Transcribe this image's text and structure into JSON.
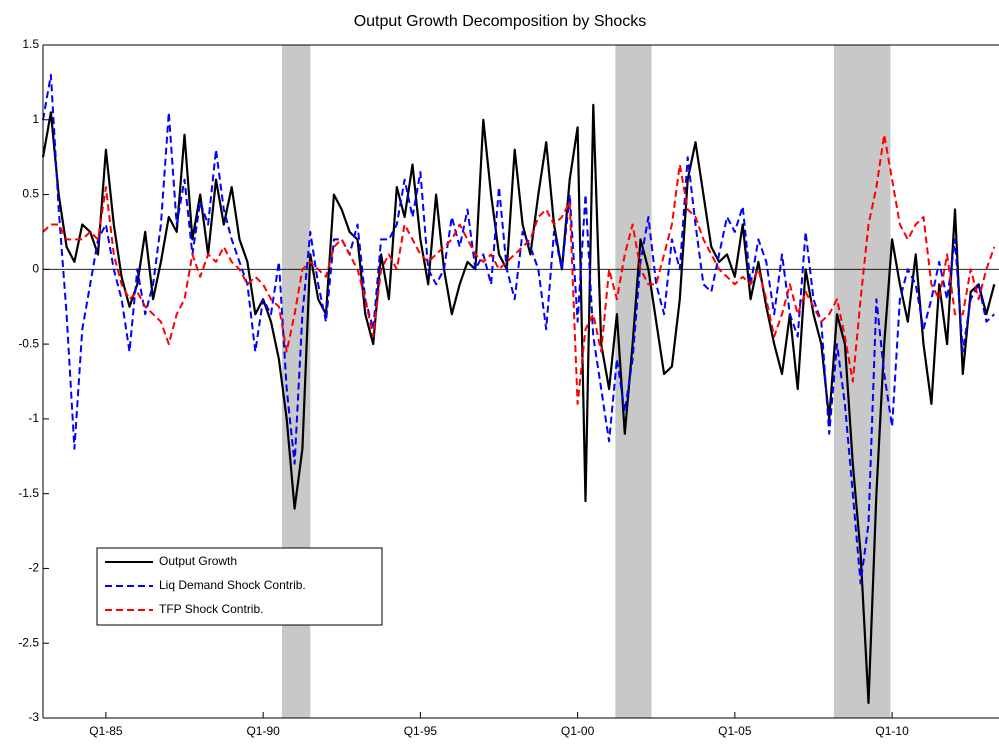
{
  "chart_data": {
    "type": "line",
    "title": "Output Growth Decomposition by Shocks",
    "x": [
      1983,
      1983.25,
      1983.5,
      1983.75,
      1984,
      1984.25,
      1984.5,
      1984.75,
      1985,
      1985.25,
      1985.5,
      1985.75,
      1986,
      1986.25,
      1986.5,
      1986.75,
      1987,
      1987.25,
      1987.5,
      1987.75,
      1988,
      1988.25,
      1988.5,
      1988.75,
      1989,
      1989.25,
      1989.5,
      1989.75,
      1990,
      1990.25,
      1990.5,
      1990.75,
      1991,
      1991.25,
      1991.5,
      1991.75,
      1992,
      1992.25,
      1992.5,
      1992.75,
      1993,
      1993.25,
      1993.5,
      1993.75,
      1994,
      1994.25,
      1994.5,
      1994.75,
      1995,
      1995.25,
      1995.5,
      1995.75,
      1996,
      1996.25,
      1996.5,
      1996.75,
      1997,
      1997.25,
      1997.5,
      1997.75,
      1998,
      1998.25,
      1998.5,
      1998.75,
      1999,
      1999.25,
      1999.5,
      1999.75,
      2000,
      2000.25,
      2000.5,
      2000.75,
      2001,
      2001.25,
      2001.5,
      2001.75,
      2002,
      2002.25,
      2002.5,
      2002.75,
      2003,
      2003.25,
      2003.5,
      2003.75,
      2004,
      2004.25,
      2004.5,
      2004.75,
      2005,
      2005.25,
      2005.5,
      2005.75,
      2006,
      2006.25,
      2006.5,
      2006.75,
      2007,
      2007.25,
      2007.5,
      2007.75,
      2008,
      2008.25,
      2008.5,
      2008.75,
      2009,
      2009.25,
      2009.5,
      2009.75,
      2010,
      2010.25,
      2010.5,
      2010.75,
      2011,
      2011.25,
      2011.5,
      2011.75,
      2012,
      2012.25,
      2012.5,
      2012.75,
      2013,
      2013.25
    ],
    "series": [
      {
        "name": "Output Growth",
        "color": "#000000",
        "dash": false,
        "values": [
          0.75,
          1.05,
          0.5,
          0.15,
          0.05,
          0.3,
          0.25,
          0.1,
          0.8,
          0.3,
          -0.05,
          -0.25,
          -0.1,
          0.25,
          -0.2,
          0.05,
          0.35,
          0.25,
          0.9,
          0.2,
          0.5,
          0.1,
          0.6,
          0.3,
          0.55,
          0.2,
          0.05,
          -0.3,
          -0.2,
          -0.35,
          -0.6,
          -1.0,
          -1.6,
          -1.2,
          0.1,
          -0.2,
          -0.3,
          0.5,
          0.4,
          0.25,
          0.2,
          -0.3,
          -0.5,
          0.1,
          -0.2,
          0.55,
          0.35,
          0.7,
          0.2,
          -0.1,
          0.5,
          0.0,
          -0.3,
          -0.1,
          0.05,
          0.0,
          1.0,
          0.5,
          0.1,
          0.0,
          0.8,
          0.3,
          0.1,
          0.5,
          0.85,
          0.3,
          0.0,
          0.6,
          0.95,
          -1.55,
          1.1,
          -0.5,
          -0.8,
          -0.3,
          -1.1,
          -0.5,
          0.2,
          0.0,
          -0.35,
          -0.7,
          -0.65,
          -0.2,
          0.6,
          0.85,
          0.5,
          0.15,
          0.05,
          0.1,
          -0.05,
          0.3,
          -0.2,
          0.05,
          -0.25,
          -0.5,
          -0.7,
          -0.3,
          -0.8,
          0.0,
          -0.3,
          -0.5,
          -1.0,
          -0.3,
          -0.5,
          -1.3,
          -1.9,
          -2.9,
          -1.5,
          -0.5,
          0.2,
          -0.1,
          -0.35,
          0.1,
          -0.5,
          -0.9,
          -0.1,
          -0.5,
          0.4,
          -0.7,
          -0.15,
          -0.1,
          -0.3,
          -0.1
        ]
      },
      {
        "name": "Liq Demand Shock Contrib.",
        "color": "#0000ff",
        "dash": true,
        "values": [
          1.0,
          1.3,
          0.4,
          -0.3,
          -1.2,
          -0.4,
          -0.1,
          0.2,
          0.3,
          0.0,
          -0.2,
          -0.55,
          0.0,
          -0.3,
          -0.1,
          0.3,
          1.05,
          0.3,
          0.6,
          0.1,
          0.45,
          0.3,
          0.8,
          0.4,
          0.2,
          0.05,
          -0.1,
          -0.55,
          -0.2,
          -0.3,
          0.05,
          -0.8,
          -1.3,
          -0.3,
          0.25,
          -0.1,
          -0.35,
          0.2,
          0.2,
          0.1,
          0.3,
          -0.2,
          -0.4,
          0.2,
          0.2,
          0.3,
          0.6,
          0.35,
          0.65,
          0.0,
          -0.1,
          0.0,
          0.35,
          0.15,
          0.4,
          0.0,
          0.1,
          -0.1,
          0.55,
          0.0,
          -0.2,
          0.25,
          0.15,
          0.0,
          -0.4,
          0.25,
          0.0,
          0.5,
          -0.35,
          0.5,
          -0.45,
          -0.8,
          -1.15,
          -0.6,
          -0.95,
          -0.6,
          0.05,
          0.35,
          -0.1,
          -0.3,
          0.2,
          0.0,
          0.75,
          0.3,
          -0.1,
          -0.15,
          0.1,
          0.35,
          0.25,
          0.42,
          -0.1,
          0.2,
          0.05,
          -0.3,
          0.1,
          -0.3,
          -0.45,
          0.25,
          -0.2,
          -0.35,
          -1.1,
          -0.5,
          -0.9,
          -1.5,
          -2.1,
          -1.7,
          -0.2,
          -0.7,
          -1.05,
          -0.2,
          0.0,
          -0.1,
          -0.4,
          -0.2,
          0.05,
          -0.2,
          0.2,
          -0.55,
          -0.2,
          -0.1,
          -0.35,
          -0.3
        ]
      },
      {
        "name": "TFP Shock Contrib.",
        "color": "#ff0000",
        "dash": true,
        "values": [
          0.25,
          0.3,
          0.3,
          0.2,
          0.2,
          0.2,
          0.25,
          0.2,
          0.55,
          0.1,
          -0.1,
          -0.2,
          -0.15,
          -0.25,
          -0.3,
          -0.35,
          -0.5,
          -0.3,
          -0.2,
          0.1,
          -0.05,
          0.1,
          0.05,
          0.15,
          0.05,
          0.0,
          -0.1,
          -0.05,
          -0.1,
          -0.2,
          -0.25,
          -0.55,
          -0.3,
          0.0,
          0.05,
          0.0,
          -0.05,
          0.15,
          0.2,
          0.1,
          0.0,
          -0.2,
          -0.45,
          0.0,
          0.1,
          0.0,
          0.3,
          0.2,
          0.1,
          0.05,
          0.1,
          0.15,
          0.2,
          0.3,
          0.2,
          0.1,
          0.05,
          0.1,
          0.0,
          0.05,
          0.1,
          0.15,
          0.2,
          0.35,
          0.4,
          0.3,
          0.35,
          0.45,
          -0.9,
          -0.4,
          -0.3,
          -0.55,
          0.0,
          -0.2,
          0.1,
          0.3,
          0.0,
          -0.1,
          -0.1,
          0.1,
          0.3,
          0.7,
          0.4,
          0.35,
          0.2,
          0.1,
          0.0,
          -0.05,
          -0.1,
          -0.05,
          -0.1,
          0.0,
          -0.2,
          -0.45,
          -0.3,
          -0.1,
          -0.3,
          -0.15,
          -0.25,
          -0.35,
          -0.3,
          -0.2,
          -0.45,
          -0.75,
          -0.2,
          0.3,
          0.55,
          0.9,
          0.6,
          0.3,
          0.2,
          0.3,
          0.35,
          -0.1,
          -0.2,
          0.1,
          -0.3,
          -0.3,
          0.0,
          -0.2,
          0.0,
          0.15
        ]
      }
    ],
    "shaded": [
      [
        1990.6,
        1991.5
      ],
      [
        2001.2,
        2002.35
      ],
      [
        2008.15,
        2009.95
      ]
    ],
    "shade_color": "#c8c8c8",
    "xlim": [
      1983,
      2013.4
    ],
    "xticks": [
      {
        "value": 1985,
        "label": "Q1-85"
      },
      {
        "value": 1990,
        "label": "Q1-90"
      },
      {
        "value": 1995,
        "label": "Q1-95"
      },
      {
        "value": 2000,
        "label": "Q1-00"
      },
      {
        "value": 2005,
        "label": "Q1-05"
      },
      {
        "value": 2010,
        "label": "Q1-10"
      }
    ],
    "ylim": [
      -3,
      1.5
    ],
    "yticks": [
      -3,
      -2.5,
      -2,
      -1.5,
      -1,
      -0.5,
      0,
      0.5,
      1,
      1.5
    ],
    "zero_line": true,
    "grid": false,
    "legend": "lower left"
  }
}
